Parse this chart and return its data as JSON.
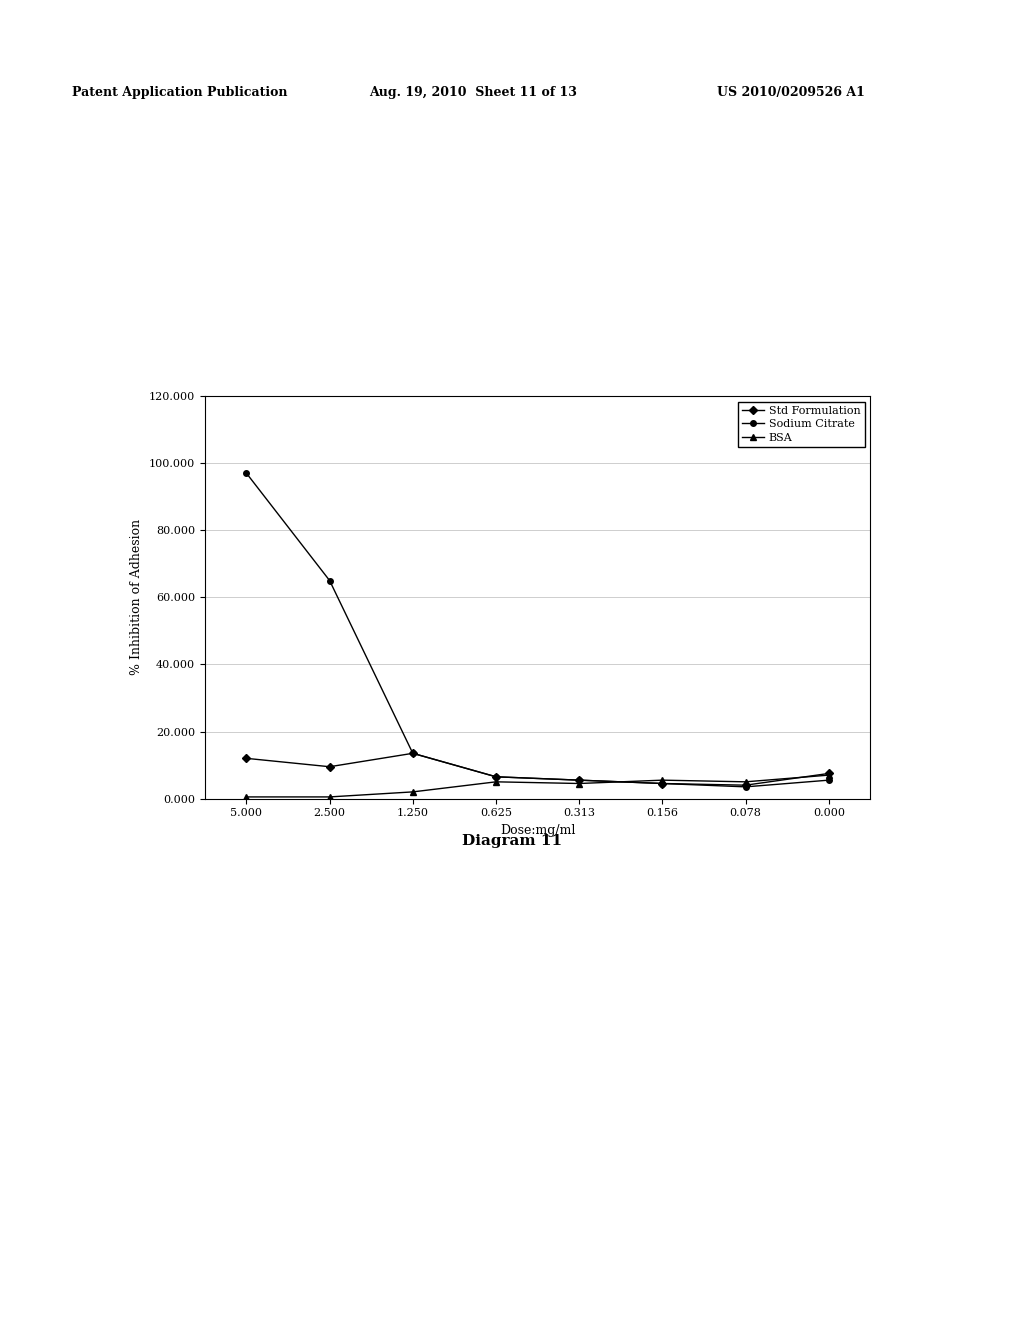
{
  "x_labels": [
    "5.000",
    "2.500",
    "1.250",
    "0.625",
    "0.313",
    "0.156",
    "0.078",
    "0.000"
  ],
  "x_values": [
    5.0,
    2.5,
    1.25,
    0.625,
    0.313,
    0.156,
    0.078,
    0.0
  ],
  "std_formulation": [
    12.0,
    9.5,
    13.5,
    6.5,
    5.5,
    4.5,
    4.0,
    7.5
  ],
  "sodium_citrate": [
    97.0,
    65.0,
    13.5,
    6.5,
    5.5,
    4.5,
    3.5,
    5.5
  ],
  "bsa": [
    0.5,
    0.5,
    2.0,
    5.0,
    4.5,
    5.5,
    5.0,
    7.0
  ],
  "ylabel": "% Inhibition of Adhesion",
  "xlabel": "Dose:mg/ml",
  "ylim": [
    0.0,
    120.0
  ],
  "yticks": [
    0.0,
    20.0,
    40.0,
    60.0,
    80.0,
    100.0,
    120.0
  ],
  "ytick_labels": [
    "0.000",
    "20.000",
    "40.000",
    "60.000",
    "80.000",
    "100.000",
    "120.000"
  ],
  "legend_labels": [
    "Std Formulation",
    "Sodium Citrate",
    "BSA"
  ],
  "diagram_label": "Diagram 11",
  "header_left": "Patent Application Publication",
  "header_mid": "Aug. 19, 2010  Sheet 11 of 13",
  "header_right": "US 2010/0209526 A1",
  "line_color": "#000000",
  "bg_color": "#ffffff",
  "fig_bg_color": "#ffffff"
}
